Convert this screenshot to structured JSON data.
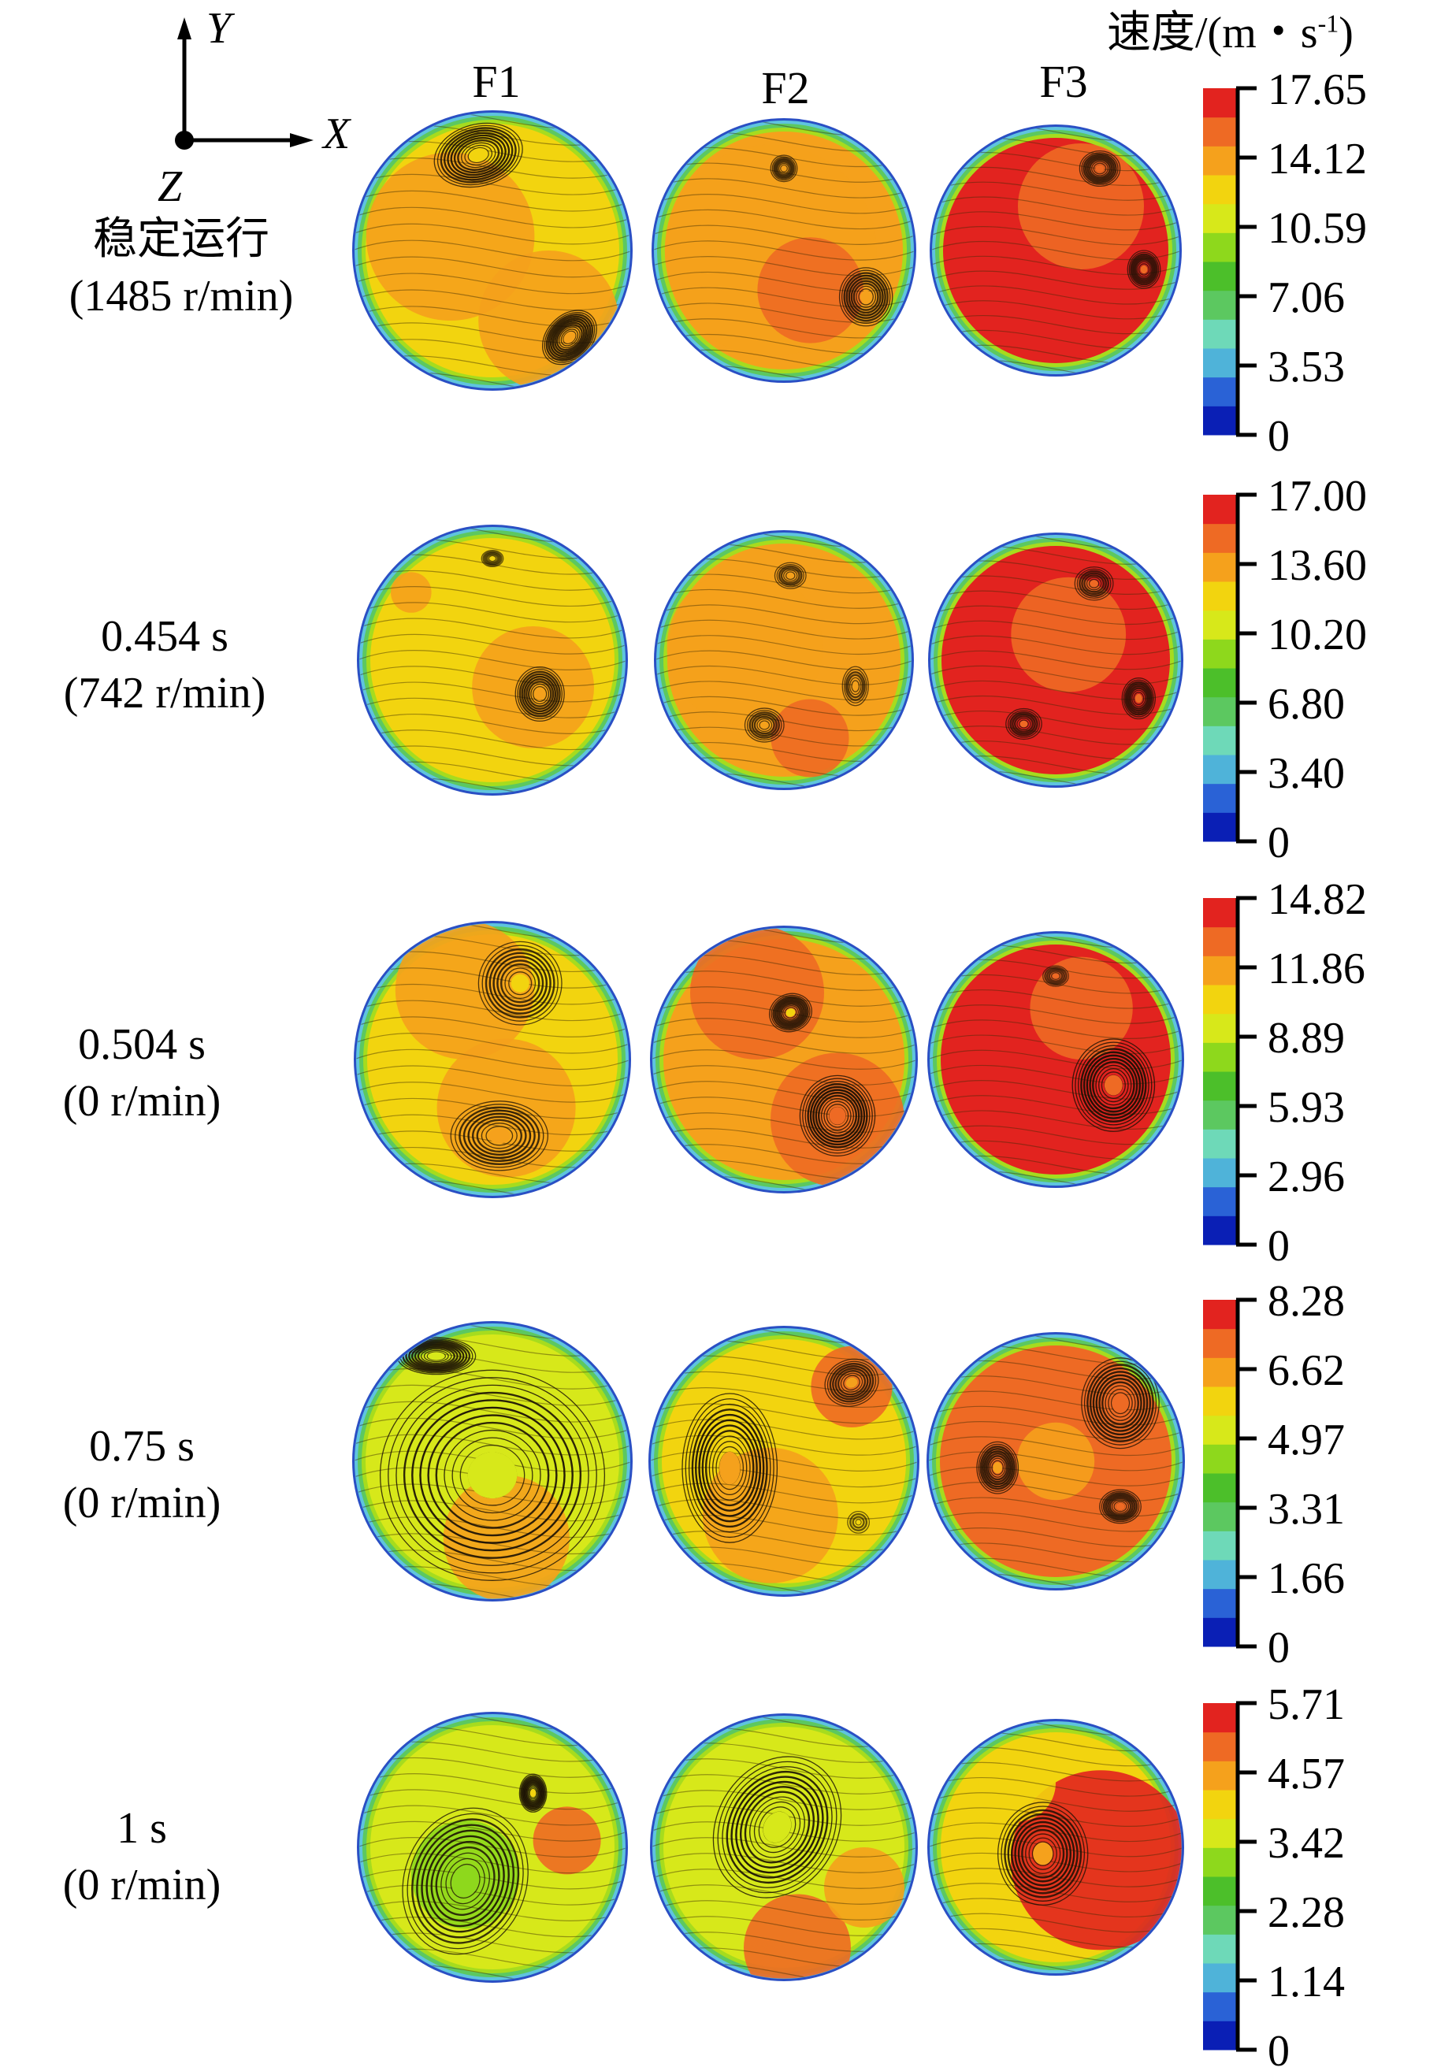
{
  "figure": {
    "axis_triad": {
      "x_label": "X",
      "y_label": "Y",
      "z_label": "Z"
    },
    "colorbar_title_main": "速度/(m・s",
    "colorbar_title_sup": "-1",
    "colorbar_title_close": ")",
    "columns": [
      "F1",
      "F2",
      "F3"
    ]
  },
  "chart_data": {
    "type": "heatmap",
    "title": "",
    "description": "Velocity magnitude contours with in-plane streamlines on circular cross-sections F1, F2, F3 at five moments",
    "colorbar_label": "速度/(m・s^-1)",
    "colormap": [
      "#0a1fb5",
      "#2a62d6",
      "#4fb3d9",
      "#6ed9b8",
      "#5cc860",
      "#4cbf2a",
      "#8ed81c",
      "#d7e81a",
      "#f2d40f",
      "#f5a11c",
      "#ee6a24",
      "#e2231f"
    ],
    "columns": [
      "F1",
      "F2",
      "F3"
    ],
    "rows": [
      {
        "label_line1": "稳定运行",
        "label_line2": "(1485 r/min)",
        "colorbar": {
          "min": 0,
          "max": 17.65,
          "ticks": [
            "17.65",
            "14.12",
            "10.59",
            "7.06",
            "3.53",
            "0"
          ]
        },
        "panels": [
          {
            "column": "F1",
            "base_level": 0.72,
            "regions": [
              {
                "x": -0.3,
                "y": 0.1,
                "r": 0.6,
                "level": 0.85
              },
              {
                "x": 0.4,
                "y": -0.5,
                "r": 0.5,
                "level": 0.85
              }
            ],
            "vortices": [
              {
                "x": -0.1,
                "y": 0.68,
                "rx": 0.32,
                "ry": 0.22,
                "rot": -15,
                "core": 0.75,
                "density": 0.9
              },
              {
                "x": 0.55,
                "y": -0.62,
                "rx": 0.22,
                "ry": 0.16,
                "rot": -45,
                "core": 0.85,
                "density": 0.9
              }
            ]
          },
          {
            "column": "F2",
            "base_level": 0.8,
            "regions": [
              {
                "x": -0.1,
                "y": 0.0,
                "r": 0.8,
                "level": 0.85
              },
              {
                "x": 0.2,
                "y": -0.3,
                "r": 0.4,
                "level": 0.9
              }
            ],
            "vortices": [
              {
                "x": 0.0,
                "y": 0.62,
                "rx": 0.1,
                "ry": 0.1,
                "rot": 0,
                "core": 0.8,
                "density": 0.6
              },
              {
                "x": 0.62,
                "y": -0.35,
                "rx": 0.2,
                "ry": 0.22,
                "rot": 0,
                "core": 0.8,
                "density": 0.8
              }
            ]
          },
          {
            "column": "F3",
            "base_level": 0.97,
            "regions": [
              {
                "x": 0.2,
                "y": 0.35,
                "r": 0.5,
                "level": 0.9
              }
            ],
            "vortices": [
              {
                "x": 0.35,
                "y": 0.65,
                "rx": 0.16,
                "ry": 0.14,
                "rot": 0,
                "core": 0.95,
                "density": 0.7
              },
              {
                "x": 0.7,
                "y": -0.15,
                "rx": 0.13,
                "ry": 0.15,
                "rot": 0,
                "core": 0.95,
                "density": 0.7
              }
            ]
          }
        ]
      },
      {
        "label_line1": "0.454 s",
        "label_line2": "(742 r/min)",
        "colorbar": {
          "min": 0,
          "max": 17.0,
          "ticks": [
            "17.00",
            "13.60",
            "10.20",
            "6.80",
            "3.40",
            "0"
          ]
        },
        "panels": [
          {
            "column": "F1",
            "base_level": 0.72,
            "regions": [
              {
                "x": 0.3,
                "y": -0.2,
                "r": 0.45,
                "level": 0.85
              },
              {
                "x": -0.6,
                "y": 0.5,
                "r": 0.15,
                "level": 0.85
              }
            ],
            "vortices": [
              {
                "x": 0.0,
                "y": 0.75,
                "rx": 0.08,
                "ry": 0.06,
                "rot": 0,
                "core": 0.7,
                "density": 0.4
              },
              {
                "x": 0.35,
                "y": -0.25,
                "rx": 0.18,
                "ry": 0.2,
                "rot": 0,
                "core": 0.85,
                "density": 0.8
              }
            ]
          },
          {
            "column": "F2",
            "base_level": 0.8,
            "regions": [
              {
                "x": -0.3,
                "y": 0.1,
                "r": 0.6,
                "level": 0.85
              },
              {
                "x": 0.2,
                "y": -0.6,
                "r": 0.3,
                "level": 0.9
              }
            ],
            "vortices": [
              {
                "x": 0.05,
                "y": 0.65,
                "rx": 0.12,
                "ry": 0.1,
                "rot": 0,
                "core": 0.8,
                "density": 0.5
              },
              {
                "x": -0.15,
                "y": -0.5,
                "rx": 0.15,
                "ry": 0.13,
                "rot": 0,
                "core": 0.85,
                "density": 0.6
              },
              {
                "x": 0.55,
                "y": -0.2,
                "rx": 0.1,
                "ry": 0.15,
                "rot": 0,
                "core": 0.8,
                "density": 0.5
              }
            ]
          },
          {
            "column": "F3",
            "base_level": 0.97,
            "regions": [
              {
                "x": 0.1,
                "y": 0.2,
                "r": 0.45,
                "level": 0.9
              }
            ],
            "vortices": [
              {
                "x": 0.3,
                "y": 0.6,
                "rx": 0.15,
                "ry": 0.13,
                "rot": 0,
                "core": 0.95,
                "density": 0.6
              },
              {
                "x": -0.25,
                "y": -0.5,
                "rx": 0.14,
                "ry": 0.12,
                "rot": 0,
                "core": 0.95,
                "density": 0.6
              },
              {
                "x": 0.65,
                "y": -0.3,
                "rx": 0.13,
                "ry": 0.16,
                "rot": 0,
                "core": 0.95,
                "density": 0.7
              }
            ]
          }
        ]
      },
      {
        "label_line1": "0.504 s",
        "label_line2": "(0 r/min)",
        "colorbar": {
          "min": 0,
          "max": 14.82,
          "ticks": [
            "14.82",
            "11.86",
            "8.89",
            "5.93",
            "2.96",
            "0"
          ]
        },
        "panels": [
          {
            "column": "F1",
            "base_level": 0.72,
            "regions": [
              {
                "x": -0.2,
                "y": 0.5,
                "r": 0.5,
                "level": 0.85
              },
              {
                "x": 0.1,
                "y": -0.35,
                "r": 0.5,
                "level": 0.85
              }
            ],
            "vortices": [
              {
                "x": 0.2,
                "y": 0.55,
                "rx": 0.3,
                "ry": 0.3,
                "rot": 0,
                "core": 0.75,
                "density": 0.8
              },
              {
                "x": 0.05,
                "y": -0.55,
                "rx": 0.35,
                "ry": 0.25,
                "rot": 0,
                "core": 0.85,
                "density": 0.8
              }
            ]
          },
          {
            "column": "F2",
            "base_level": 0.8,
            "regions": [
              {
                "x": -0.2,
                "y": 0.5,
                "r": 0.5,
                "level": 0.9
              },
              {
                "x": 0.4,
                "y": -0.45,
                "r": 0.5,
                "level": 0.92
              }
            ],
            "vortices": [
              {
                "x": 0.05,
                "y": 0.35,
                "rx": 0.16,
                "ry": 0.14,
                "rot": -20,
                "core": 0.75,
                "density": 0.8
              },
              {
                "x": 0.4,
                "y": -0.42,
                "rx": 0.28,
                "ry": 0.3,
                "rot": 0,
                "core": 0.9,
                "density": 1.0
              }
            ]
          },
          {
            "column": "F3",
            "base_level": 0.97,
            "regions": [
              {
                "x": 0.2,
                "y": 0.4,
                "r": 0.4,
                "level": 0.9
              }
            ],
            "vortices": [
              {
                "x": 0.0,
                "y": 0.65,
                "rx": 0.1,
                "ry": 0.08,
                "rot": 0,
                "core": 0.9,
                "density": 0.4
              },
              {
                "x": 0.45,
                "y": -0.2,
                "rx": 0.32,
                "ry": 0.36,
                "rot": 0,
                "core": 0.93,
                "density": 1.0
              }
            ]
          }
        ]
      },
      {
        "label_line1": "0.75 s",
        "label_line2": "(0 r/min)",
        "colorbar": {
          "min": 0,
          "max": 8.28,
          "ticks": [
            "8.28",
            "6.62",
            "4.97",
            "3.31",
            "1.66",
            "0"
          ]
        },
        "panels": [
          {
            "column": "F1",
            "base_level": 0.62,
            "regions": [
              {
                "x": 0.1,
                "y": -0.55,
                "r": 0.45,
                "level": 0.85
              }
            ],
            "vortices": [
              {
                "x": -0.4,
                "y": 0.75,
                "rx": 0.28,
                "ry": 0.13,
                "rot": 0,
                "core": 0.65,
                "density": 0.9
              },
              {
                "x": 0.0,
                "y": -0.1,
                "rx": 0.8,
                "ry": 0.75,
                "rot": 0,
                "core": 0.6,
                "density": 1.0
              }
            ]
          },
          {
            "column": "F2",
            "base_level": 0.7,
            "regions": [
              {
                "x": 0.5,
                "y": 0.55,
                "r": 0.3,
                "level": 0.9
              },
              {
                "x": -0.1,
                "y": -0.4,
                "r": 0.5,
                "level": 0.8
              }
            ],
            "vortices": [
              {
                "x": -0.4,
                "y": -0.05,
                "rx": 0.35,
                "ry": 0.55,
                "rot": 0,
                "core": 0.8,
                "density": 1.0
              },
              {
                "x": 0.5,
                "y": 0.58,
                "rx": 0.2,
                "ry": 0.17,
                "rot": -20,
                "core": 0.85,
                "density": 0.7
              },
              {
                "x": 0.55,
                "y": -0.45,
                "rx": 0.08,
                "ry": 0.08,
                "rot": 0,
                "core": 0.7,
                "density": 0.3
              }
            ]
          },
          {
            "column": "F3",
            "base_level": 0.9,
            "regions": [
              {
                "x": 0.0,
                "y": 0.0,
                "r": 0.3,
                "level": 0.78
              }
            ],
            "vortices": [
              {
                "x": 0.5,
                "y": 0.45,
                "rx": 0.3,
                "ry": 0.35,
                "rot": 0,
                "core": 0.92,
                "density": 0.9
              },
              {
                "x": -0.45,
                "y": -0.05,
                "rx": 0.16,
                "ry": 0.2,
                "rot": 0,
                "core": 0.78,
                "density": 0.8
              },
              {
                "x": 0.5,
                "y": -0.35,
                "rx": 0.16,
                "ry": 0.13,
                "rot": 0,
                "core": 0.95,
                "density": 0.7
              }
            ]
          }
        ]
      },
      {
        "label_line1": "1 s",
        "label_line2": "(0 r/min)",
        "colorbar": {
          "min": 0,
          "max": 5.71,
          "ticks": [
            "5.71",
            "4.57",
            "3.42",
            "2.28",
            "1.14",
            "0"
          ]
        },
        "panels": [
          {
            "column": "F1",
            "base_level": 0.66,
            "regions": [
              {
                "x": -0.2,
                "y": -0.2,
                "r": 0.4,
                "level": 0.55
              },
              {
                "x": 0.55,
                "y": 0.05,
                "r": 0.25,
                "level": 0.88
              }
            ],
            "vortices": [
              {
                "x": -0.2,
                "y": -0.25,
                "rx": 0.45,
                "ry": 0.55,
                "rot": 20,
                "core": 0.55,
                "density": 0.9
              },
              {
                "x": 0.3,
                "y": 0.4,
                "rx": 0.1,
                "ry": 0.14,
                "rot": 0,
                "core": 0.75,
                "density": 0.9
              }
            ]
          },
          {
            "column": "F2",
            "base_level": 0.68,
            "regions": [
              {
                "x": 0.1,
                "y": -0.75,
                "r": 0.4,
                "level": 0.9
              },
              {
                "x": 0.6,
                "y": -0.3,
                "r": 0.3,
                "level": 0.82
              }
            ],
            "vortices": [
              {
                "x": -0.05,
                "y": 0.15,
                "rx": 0.45,
                "ry": 0.55,
                "rot": 30,
                "core": 0.62,
                "density": 1.0
              }
            ]
          },
          {
            "column": "F3",
            "base_level": 0.75,
            "regions": [
              {
                "x": 0.35,
                "y": -0.1,
                "r": 0.7,
                "level": 0.97
              },
              {
                "x": -0.3,
                "y": 0.5,
                "r": 0.3,
                "level": 0.75
              }
            ],
            "vortices": [
              {
                "x": -0.1,
                "y": -0.05,
                "rx": 0.35,
                "ry": 0.4,
                "rot": 0,
                "core": 0.8,
                "density": 0.9
              }
            ]
          }
        ]
      }
    ]
  }
}
